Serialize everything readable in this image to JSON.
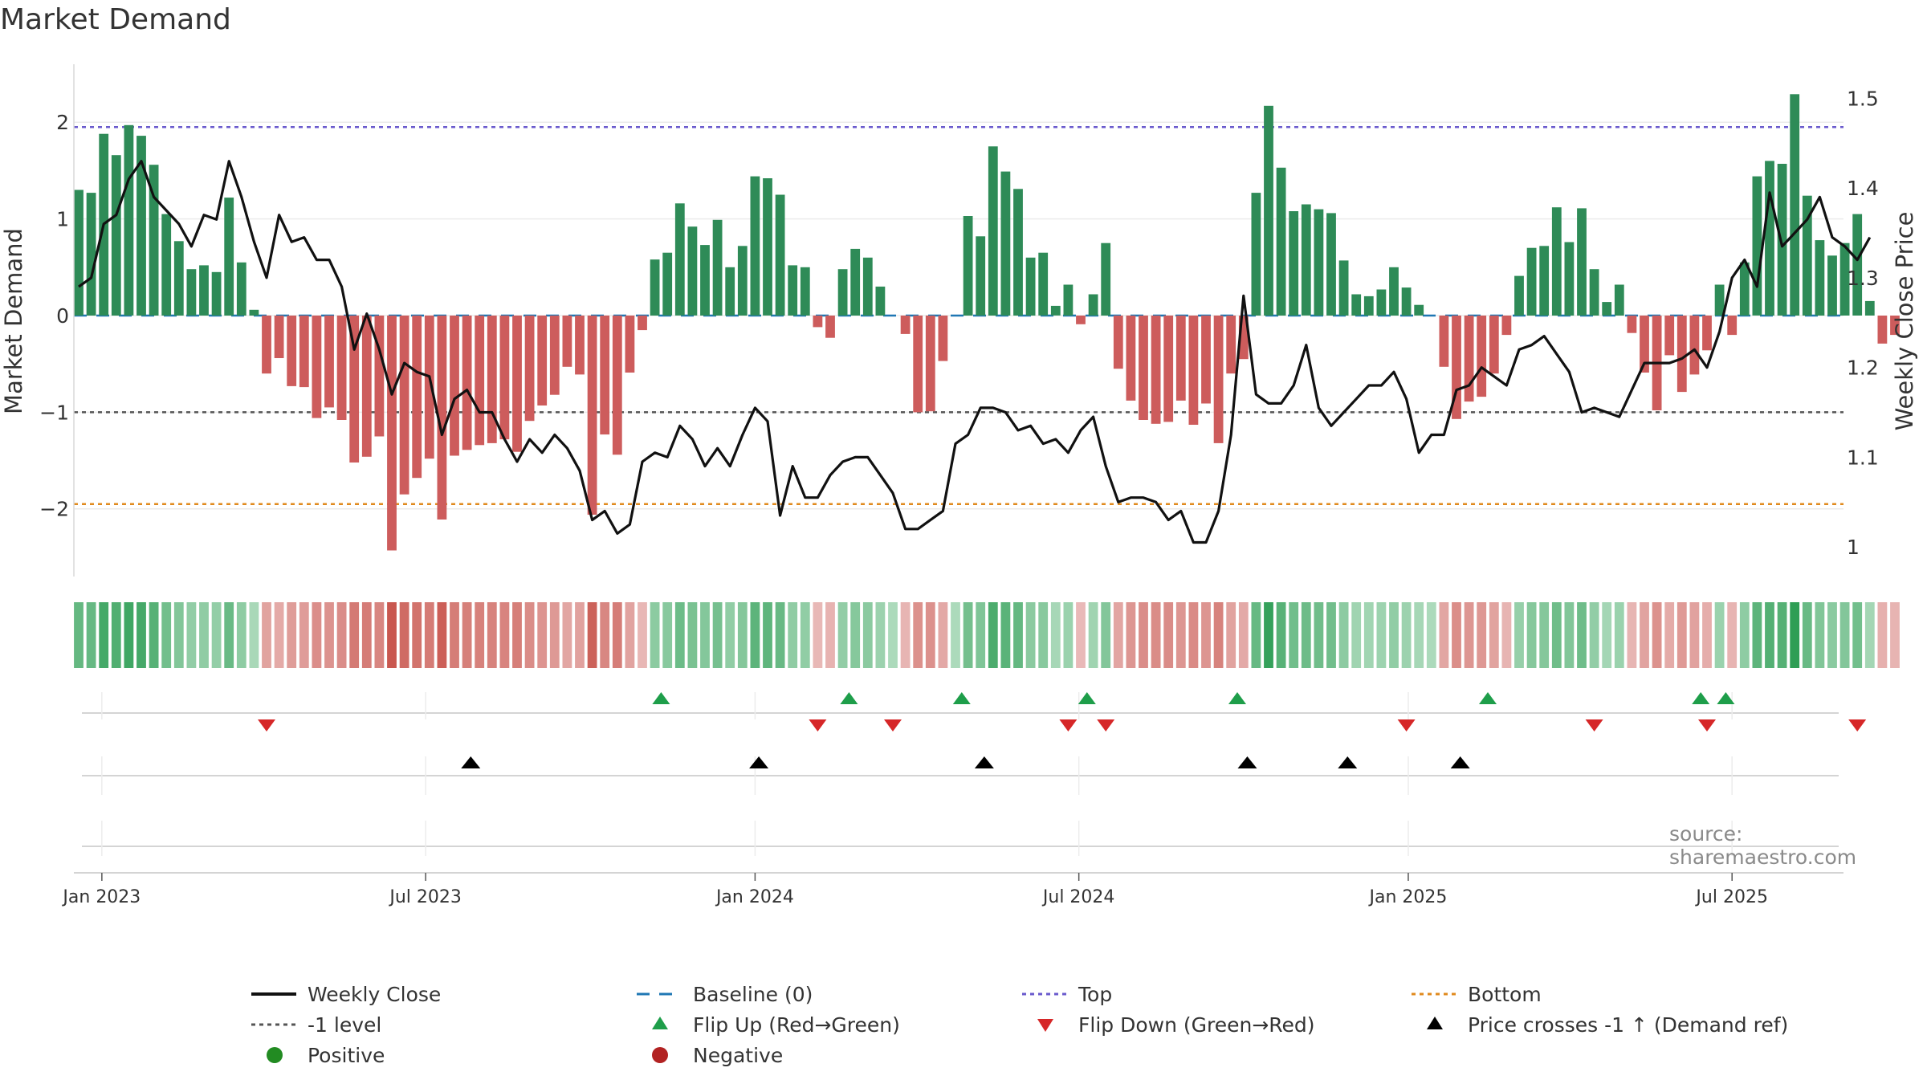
{
  "title": "Market Demand",
  "source": "source: sharemaestro.com",
  "chart_data": {
    "type": "bar+line",
    "title": "Market Demand",
    "ylabel": "Market Demand",
    "y2label": "Weekly Close Price",
    "ylim": [
      -2.7,
      2.6
    ],
    "y2lim": [
      0.967,
      1.538
    ],
    "yticks": [
      -2,
      -1,
      0,
      1,
      2
    ],
    "yticklabels": [
      "−2",
      "−1",
      "0",
      "1",
      "2"
    ],
    "y2ticks": [
      1.0,
      1.1,
      1.2,
      1.3,
      1.4,
      1.5
    ],
    "y2ticklabels": [
      "1",
      "1.1",
      "1.2",
      "1.3",
      "1.4",
      "1.5"
    ],
    "x_start": "2022-12-19",
    "x_step_days": 7,
    "xticks": [
      {
        "label": "Jan 2023",
        "week": 1.85
      },
      {
        "label": "Jul 2023",
        "week": 27.7
      },
      {
        "label": "Jan 2024",
        "week": 54.0
      },
      {
        "label": "Jul 2024",
        "week": 79.85
      },
      {
        "label": "Jan 2025",
        "week": 106.15
      },
      {
        "label": "Jul 2025",
        "week": 132.0
      }
    ],
    "reference_lines": {
      "top": 1.95,
      "minus_one": -1.0,
      "bottom": -1.95,
      "baseline": 0
    },
    "demand": [
      1.3,
      1.27,
      1.88,
      1.66,
      1.97,
      1.86,
      1.56,
      1.05,
      0.77,
      0.48,
      0.52,
      0.45,
      1.22,
      0.55,
      0.06,
      -0.6,
      -0.44,
      -0.73,
      -0.74,
      -1.06,
      -0.95,
      -1.08,
      -1.52,
      -1.46,
      -1.25,
      -2.43,
      -1.85,
      -1.68,
      -1.48,
      -2.11,
      -1.45,
      -1.39,
      -1.34,
      -1.32,
      -1.28,
      -1.41,
      -1.09,
      -0.93,
      -0.82,
      -0.53,
      -0.61,
      -2.06,
      -1.23,
      -1.44,
      -0.59,
      -0.15,
      0.58,
      0.65,
      1.16,
      0.92,
      0.73,
      0.99,
      0.5,
      0.72,
      1.44,
      1.42,
      1.25,
      0.52,
      0.5,
      -0.12,
      -0.23,
      0.48,
      0.69,
      0.6,
      0.3,
      0.0,
      -0.19,
      -1.0,
      -0.99,
      -0.47,
      0.0,
      1.03,
      0.82,
      1.75,
      1.49,
      1.31,
      0.6,
      0.65,
      0.1,
      0.32,
      -0.09,
      0.22,
      0.75,
      -0.55,
      -0.88,
      -1.08,
      -1.12,
      -1.1,
      -0.88,
      -1.13,
      -0.91,
      -1.32,
      -0.6,
      -0.45,
      1.27,
      2.17,
      1.53,
      1.08,
      1.15,
      1.1,
      1.06,
      0.57,
      0.22,
      0.2,
      0.27,
      0.5,
      0.29,
      0.11,
      0.0,
      -0.53,
      -1.07,
      -0.89,
      -0.84,
      -0.6,
      -0.2,
      0.41,
      0.7,
      0.72,
      1.12,
      0.76,
      1.11,
      0.48,
      0.14,
      0.32,
      -0.18,
      -0.59,
      -0.98,
      -0.41,
      -0.79,
      -0.61,
      -0.36,
      0.32,
      -0.2,
      0.55,
      1.44,
      1.6,
      1.57,
      2.29,
      1.24,
      0.78,
      0.62,
      0.75,
      1.05,
      0.15,
      -0.29,
      -0.2
    ],
    "weekly_close": [
      1.29,
      1.3,
      1.36,
      1.37,
      1.41,
      1.43,
      1.39,
      1.375,
      1.36,
      1.335,
      1.37,
      1.365,
      1.43,
      1.39,
      1.34,
      1.3,
      1.37,
      1.34,
      1.345,
      1.32,
      1.32,
      1.29,
      1.22,
      1.26,
      1.22,
      1.17,
      1.205,
      1.195,
      1.19,
      1.125,
      1.165,
      1.175,
      1.15,
      1.15,
      1.12,
      1.095,
      1.12,
      1.105,
      1.125,
      1.11,
      1.085,
      1.03,
      1.04,
      1.015,
      1.025,
      1.095,
      1.105,
      1.1,
      1.135,
      1.12,
      1.09,
      1.11,
      1.09,
      1.125,
      1.155,
      1.14,
      1.035,
      1.09,
      1.055,
      1.055,
      1.08,
      1.095,
      1.1,
      1.1,
      1.08,
      1.06,
      1.02,
      1.02,
      1.03,
      1.04,
      1.115,
      1.125,
      1.155,
      1.155,
      1.15,
      1.13,
      1.135,
      1.115,
      1.12,
      1.105,
      1.13,
      1.145,
      1.09,
      1.05,
      1.055,
      1.055,
      1.05,
      1.03,
      1.04,
      1.005,
      1.005,
      1.04,
      1.125,
      1.28,
      1.17,
      1.16,
      1.16,
      1.18,
      1.225,
      1.155,
      1.135,
      1.15,
      1.165,
      1.18,
      1.18,
      1.195,
      1.165,
      1.105,
      1.125,
      1.125,
      1.175,
      1.18,
      1.2,
      1.19,
      1.18,
      1.22,
      1.225,
      1.235,
      1.215,
      1.195,
      1.15,
      1.155,
      1.15,
      1.145,
      1.175,
      1.205,
      1.205,
      1.205,
      1.21,
      1.22,
      1.2,
      1.24,
      1.3,
      1.32,
      1.29,
      1.395,
      1.335,
      1.35,
      1.365,
      1.39,
      1.345,
      1.335,
      1.32,
      1.345
    ],
    "flip_up_weeks": [
      46.5,
      61.5,
      70.5,
      80.5,
      92.5,
      112.5,
      129.5,
      131.5
    ],
    "flip_down_weeks": [
      15,
      59,
      65,
      79,
      82,
      106,
      121,
      130,
      142
    ],
    "price_cross_weeks": [
      31.3,
      54.3,
      72.3,
      93.3,
      101.3,
      110.3
    ],
    "legend": {
      "weekly_close": "Weekly Close",
      "baseline": "Baseline (0)",
      "top": "Top",
      "bottom": "Bottom",
      "minus_one": "-1 level",
      "flip_up": "Flip Up (Red→Green)",
      "flip_down": "Flip Down (Green→Red)",
      "price_cross": "Price crosses -1 ↑ (Demand ref)",
      "positive": "Positive",
      "negative": "Negative"
    }
  },
  "colors": {
    "bar_positive": "#2e8b57",
    "bar_negative": "#cd5c5c",
    "line": "#111111",
    "baseline": "#1f77b4",
    "top_line": "#6a5acd",
    "minus_one_line": "#555555",
    "bottom_line": "#e08a1e",
    "flip_up": "#1e9e4a",
    "flip_down": "#d62728",
    "price_cross": "#000000",
    "dot_positive": "#228b22",
    "dot_negative": "#b22222"
  }
}
